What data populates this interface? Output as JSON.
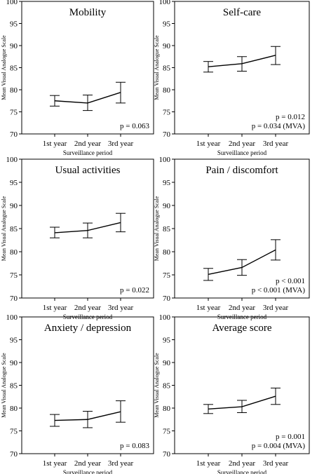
{
  "panel_border_color": "#000000",
  "line_color": "#000000",
  "chart_data": [
    {
      "type": "line",
      "title": "Mobility",
      "xlabel": "Surveillance period",
      "ylabel": "Mean Visual Analogue Scale",
      "categories": [
        "1st year",
        "2nd year",
        "3rd year"
      ],
      "values": [
        77.5,
        77.0,
        79.4
      ],
      "error_lower": [
        76.3,
        75.3,
        77.0
      ],
      "error_upper": [
        78.7,
        78.8,
        81.7
      ],
      "ylim": [
        70,
        100
      ],
      "yticks": [
        70,
        75,
        80,
        85,
        90,
        95,
        100
      ],
      "annotations": [
        "p = 0.063"
      ]
    },
    {
      "type": "line",
      "title": "Self-care",
      "xlabel": "Surveillance period",
      "ylabel": "Mean Visual Analogue Scale",
      "categories": [
        "1st year",
        "2nd year",
        "3rd year"
      ],
      "values": [
        85.2,
        85.9,
        87.8
      ],
      "error_lower": [
        84.0,
        84.2,
        85.7
      ],
      "error_upper": [
        86.4,
        87.5,
        89.8
      ],
      "ylim": [
        70,
        100
      ],
      "yticks": [
        70,
        75,
        80,
        85,
        90,
        95,
        100
      ],
      "annotations": [
        "p = 0.012",
        "p = 0.034 (MVA)"
      ]
    },
    {
      "type": "line",
      "title": "Usual activities",
      "xlabel": "Surveillance period",
      "ylabel": "Mean Visual Analogue Scale",
      "categories": [
        "1st year",
        "2nd year",
        "3rd year"
      ],
      "values": [
        84.1,
        84.6,
        86.3
      ],
      "error_lower": [
        83.0,
        83.0,
        84.3
      ],
      "error_upper": [
        85.3,
        86.2,
        88.3
      ],
      "ylim": [
        70,
        100
      ],
      "yticks": [
        70,
        75,
        80,
        85,
        90,
        95,
        100
      ],
      "annotations": [
        "p = 0.022"
      ]
    },
    {
      "type": "line",
      "title": "Pain / discomfort",
      "xlabel": "Surveillance period",
      "ylabel": "Mean Visual Analogue Scale",
      "categories": [
        "1st year",
        "2nd year",
        "3rd year"
      ],
      "values": [
        75.1,
        76.6,
        80.4
      ],
      "error_lower": [
        73.8,
        74.9,
        78.2
      ],
      "error_upper": [
        76.4,
        78.3,
        82.6
      ],
      "ylim": [
        70,
        100
      ],
      "yticks": [
        70,
        75,
        80,
        85,
        90,
        95,
        100
      ],
      "annotations": [
        "p < 0.001",
        "p < 0.001 (MVA)"
      ]
    },
    {
      "type": "line",
      "title": "Anxiety / depression",
      "xlabel": "Surveillance period",
      "ylabel": "Mean Visual Analogue Scale",
      "categories": [
        "1st year",
        "2nd year",
        "3rd year"
      ],
      "values": [
        77.3,
        77.5,
        79.2
      ],
      "error_lower": [
        76.0,
        75.7,
        76.9
      ],
      "error_upper": [
        78.6,
        79.3,
        81.6
      ],
      "ylim": [
        70,
        100
      ],
      "yticks": [
        70,
        75,
        80,
        85,
        90,
        95,
        100
      ],
      "annotations": [
        "p = 0.083"
      ]
    },
    {
      "type": "line",
      "title": "Average score",
      "xlabel": "Surveillance period",
      "ylabel": "Mean Visual Analogue Scale",
      "categories": [
        "1st year",
        "2nd year",
        "3rd year"
      ],
      "values": [
        79.8,
        80.3,
        82.6
      ],
      "error_lower": [
        78.8,
        79.0,
        80.8
      ],
      "error_upper": [
        80.8,
        81.7,
        84.4
      ],
      "ylim": [
        70,
        100
      ],
      "yticks": [
        70,
        75,
        80,
        85,
        90,
        95,
        100
      ],
      "annotations": [
        "p = 0.001",
        "p = 0.004 (MVA)"
      ]
    }
  ]
}
